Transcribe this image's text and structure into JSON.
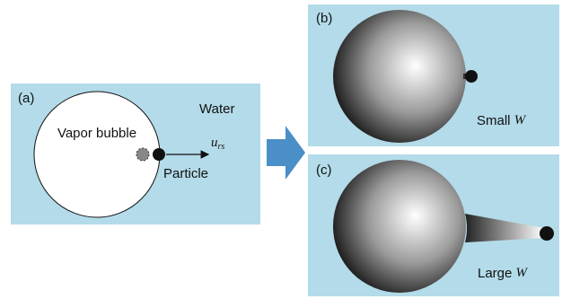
{
  "panels": [
    {
      "label": "(a)",
      "medium": "Water",
      "bubble": "Vapor bubble",
      "particle": "Particle",
      "velocity": {
        "symbol": "u",
        "subscript": "rs"
      }
    },
    {
      "label": "(b)",
      "caption": {
        "text": "Small",
        "variable": "W"
      }
    },
    {
      "label": "(c)",
      "caption": {
        "text": "Large",
        "variable": "W"
      }
    }
  ]
}
